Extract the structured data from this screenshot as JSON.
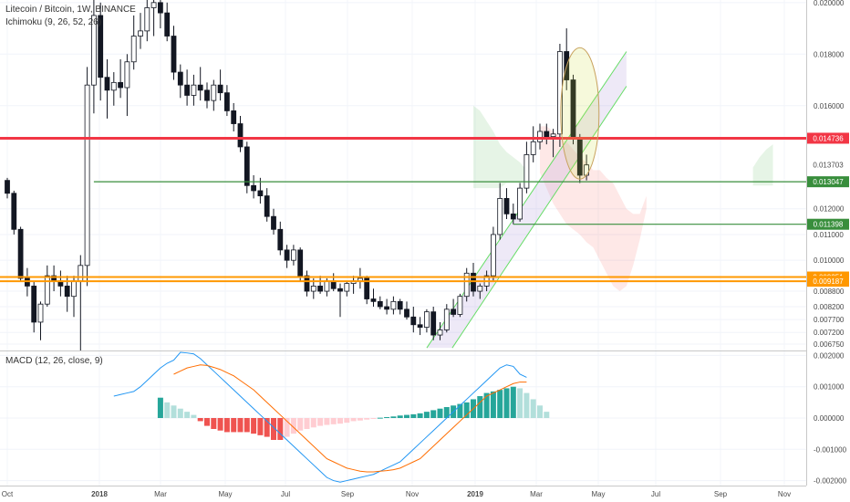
{
  "chart_data": [
    {
      "type": "candlestick",
      "title": "Litecoin / Bitcoin, 1W, BINANCE",
      "indicator": "Ichimoku (9, 26, 52, 26)",
      "timeframe": "1W",
      "exchange": "BINANCE",
      "ylim": [
        0.0065,
        0.0201
      ],
      "y_ticks": [
        "0.020000",
        "0.018000",
        "0.016000",
        "0.012000",
        "0.011000",
        "0.010000",
        "0.008800",
        "0.008200",
        "0.007700",
        "0.007200",
        "0.006750"
      ],
      "x_ticks": [
        "Oct",
        "2018",
        "Mar",
        "May",
        "Jul",
        "Sep",
        "Nov",
        "2019",
        "Mar",
        "May",
        "Jul",
        "Sep",
        "Nov"
      ],
      "candles": [
        [
          0.0131,
          0.0132,
          0.0124,
          0.0126
        ],
        [
          0.0126,
          0.0127,
          0.011,
          0.0112
        ],
        [
          0.0112,
          0.0113,
          0.0092,
          0.0093
        ],
        [
          0.0093,
          0.0097,
          0.0086,
          0.009
        ],
        [
          0.009,
          0.0092,
          0.0072,
          0.0076
        ],
        [
          0.0076,
          0.0084,
          0.0069,
          0.0083
        ],
        [
          0.0083,
          0.0098,
          0.0082,
          0.0094
        ],
        [
          0.0094,
          0.0098,
          0.0088,
          0.0092
        ],
        [
          0.0092,
          0.0096,
          0.0086,
          0.009
        ],
        [
          0.009,
          0.0094,
          0.008,
          0.0086
        ],
        [
          0.0086,
          0.0094,
          0.0078,
          0.0092
        ],
        [
          0.0092,
          0.0102,
          0.0065,
          0.0098
        ],
        [
          0.0098,
          0.0175,
          0.009,
          0.0168
        ],
        [
          0.0168,
          0.0205,
          0.0157,
          0.0195
        ],
        [
          0.0195,
          0.02,
          0.0162,
          0.0171
        ],
        [
          0.0171,
          0.0178,
          0.0155,
          0.0166
        ],
        [
          0.0166,
          0.0173,
          0.016,
          0.0169
        ],
        [
          0.0169,
          0.0178,
          0.0163,
          0.0167
        ],
        [
          0.0167,
          0.018,
          0.0156,
          0.0177
        ],
        [
          0.0177,
          0.0195,
          0.0174,
          0.0187
        ],
        [
          0.0187,
          0.0196,
          0.0182,
          0.0189
        ],
        [
          0.0189,
          0.0205,
          0.0185,
          0.0198
        ],
        [
          0.0198,
          0.0206,
          0.0187,
          0.02
        ],
        [
          0.02,
          0.0204,
          0.019,
          0.0196
        ],
        [
          0.0196,
          0.02,
          0.0185,
          0.0187
        ],
        [
          0.0187,
          0.0191,
          0.017,
          0.0173
        ],
        [
          0.0173,
          0.0176,
          0.0163,
          0.0168
        ],
        [
          0.0168,
          0.0174,
          0.016,
          0.0164
        ],
        [
          0.0164,
          0.0172,
          0.016,
          0.0168
        ],
        [
          0.0168,
          0.0175,
          0.0162,
          0.0166
        ],
        [
          0.0166,
          0.0169,
          0.0159,
          0.0162
        ],
        [
          0.0162,
          0.017,
          0.0158,
          0.0168
        ],
        [
          0.0168,
          0.0174,
          0.0162,
          0.0165
        ],
        [
          0.0165,
          0.0168,
          0.0156,
          0.0158
        ],
        [
          0.0158,
          0.0161,
          0.015,
          0.0153
        ],
        [
          0.0153,
          0.0156,
          0.0142,
          0.0144
        ],
        [
          0.0144,
          0.0146,
          0.0126,
          0.0129
        ],
        [
          0.0129,
          0.0133,
          0.0124,
          0.0127
        ],
        [
          0.0127,
          0.0132,
          0.0122,
          0.0125
        ],
        [
          0.0125,
          0.0128,
          0.0115,
          0.0117
        ],
        [
          0.0117,
          0.012,
          0.011,
          0.0112
        ],
        [
          0.0112,
          0.0115,
          0.0102,
          0.0104
        ],
        [
          0.0104,
          0.0106,
          0.0097,
          0.01
        ],
        [
          0.01,
          0.0106,
          0.0098,
          0.0104
        ],
        [
          0.0104,
          0.0105,
          0.0092,
          0.0094
        ],
        [
          0.0094,
          0.0096,
          0.0086,
          0.0088
        ],
        [
          0.0088,
          0.0093,
          0.0085,
          0.009
        ],
        [
          0.009,
          0.0094,
          0.0087,
          0.0088
        ],
        [
          0.0088,
          0.0093,
          0.0086,
          0.0092
        ],
        [
          0.0092,
          0.0095,
          0.0088,
          0.0089
        ],
        [
          0.0089,
          0.0091,
          0.0078,
          0.0088
        ],
        [
          0.0088,
          0.0092,
          0.0086,
          0.0091
        ],
        [
          0.0091,
          0.0094,
          0.0087,
          0.0092
        ],
        [
          0.0092,
          0.0097,
          0.0089,
          0.0093
        ],
        [
          0.0093,
          0.0094,
          0.0083,
          0.0085
        ],
        [
          0.0085,
          0.0089,
          0.0082,
          0.0084
        ],
        [
          0.0084,
          0.0086,
          0.0081,
          0.0082
        ],
        [
          0.0082,
          0.0085,
          0.0079,
          0.0081
        ],
        [
          0.0081,
          0.0086,
          0.0079,
          0.0084
        ],
        [
          0.0084,
          0.0085,
          0.0079,
          0.0081
        ],
        [
          0.0081,
          0.0084,
          0.0077,
          0.0078
        ],
        [
          0.0078,
          0.0082,
          0.0072,
          0.0075
        ],
        [
          0.0075,
          0.0078,
          0.0071,
          0.0074
        ],
        [
          0.0074,
          0.0081,
          0.0072,
          0.008
        ],
        [
          0.008,
          0.0082,
          0.0069,
          0.0071
        ],
        [
          0.0071,
          0.0076,
          0.0069,
          0.0073
        ],
        [
          0.0073,
          0.0083,
          0.0072,
          0.0081
        ],
        [
          0.0081,
          0.0085,
          0.0078,
          0.0079
        ],
        [
          0.0079,
          0.0087,
          0.0078,
          0.0086
        ],
        [
          0.0086,
          0.0097,
          0.0084,
          0.0095
        ],
        [
          0.0095,
          0.0099,
          0.0086,
          0.0088
        ],
        [
          0.0088,
          0.0091,
          0.0085,
          0.009
        ],
        [
          0.009,
          0.0096,
          0.0088,
          0.0094
        ],
        [
          0.0094,
          0.0113,
          0.0092,
          0.011
        ],
        [
          0.011,
          0.013,
          0.0108,
          0.0124
        ],
        [
          0.0124,
          0.0128,
          0.0116,
          0.0118
        ],
        [
          0.0118,
          0.0122,
          0.0114,
          0.0116
        ],
        [
          0.0116,
          0.013,
          0.0115,
          0.0128
        ],
        [
          0.0128,
          0.0146,
          0.0126,
          0.0141
        ],
        [
          0.0141,
          0.0152,
          0.0138,
          0.0146
        ],
        [
          0.0146,
          0.0153,
          0.0143,
          0.015
        ],
        [
          0.015,
          0.0153,
          0.0145,
          0.0148
        ],
        [
          0.0148,
          0.0151,
          0.014,
          0.0149
        ],
        [
          0.0149,
          0.0184,
          0.0144,
          0.0181
        ],
        [
          0.0181,
          0.019,
          0.0166,
          0.017
        ],
        [
          0.017,
          0.0172,
          0.0145,
          0.0147
        ],
        [
          0.0147,
          0.0149,
          0.013,
          0.0133
        ],
        [
          0.0133,
          0.0141,
          0.0131,
          0.0137
        ]
      ],
      "cloud": {
        "green_a": [
          [
            0.016,
            0.0128
          ],
          [
            0.0158,
            0.0128
          ],
          [
            0.0154,
            0.0128
          ],
          [
            0.015,
            0.0128
          ],
          [
            0.0145,
            0.0128
          ],
          [
            0.0142,
            0.013
          ],
          [
            0.014,
            0.013
          ],
          [
            0.0138,
            0.013
          ],
          [
            0.0135,
            0.0131
          ]
        ],
        "red_a": [
          [
            0.0134,
            0.0152
          ],
          [
            0.0128,
            0.0152
          ],
          [
            0.0122,
            0.015
          ],
          [
            0.0118,
            0.0148
          ],
          [
            0.0114,
            0.0146
          ],
          [
            0.0112,
            0.0143
          ],
          [
            0.011,
            0.014
          ],
          [
            0.0107,
            0.0138
          ],
          [
            0.0105,
            0.0135
          ],
          [
            0.01,
            0.0135
          ],
          [
            0.0095,
            0.0132
          ],
          [
            0.009,
            0.013
          ],
          [
            0.0088,
            0.0125
          ],
          [
            0.009,
            0.012
          ],
          [
            0.0098,
            0.0118
          ],
          [
            0.0108,
            0.0118
          ],
          [
            0.012,
            0.0125
          ]
        ],
        "green_b": [
          [
            0.0136,
            0.0129
          ],
          [
            0.014,
            0.0129
          ],
          [
            0.0143,
            0.0129
          ],
          [
            0.0145,
            0.0129
          ]
        ]
      },
      "horizontal_levels": [
        {
          "value": 0.014736,
          "label": "0.014736",
          "color": "#f23645",
          "width": 3
        },
        {
          "value": 0.013047,
          "label": "0.013047",
          "color": "#388e3c",
          "width": 1.2
        },
        {
          "value": 0.011398,
          "label": "0.011398",
          "color": "#388e3c",
          "width": 1.2
        },
        {
          "value": 0.009351,
          "label": "0.009351",
          "color": "#ff9800",
          "width": 2
        },
        {
          "value": 0.009187,
          "label": "0.009187",
          "color": "#ff9800",
          "width": 2
        }
      ],
      "last_price": {
        "value": 0.013703,
        "label": "0.013703"
      },
      "channel": {
        "fill": "#b39ddb",
        "line": "#66dd66"
      }
    },
    {
      "type": "macd",
      "title": "MACD (12, 26, close, 9)",
      "ylim": [
        -0.0021,
        0.0021
      ],
      "y_ticks": [
        "0.002000",
        "0.001000",
        "0.000000",
        "-0.001000",
        "-0.002000"
      ],
      "macd": [
        0.0007,
        0.00075,
        0.0008,
        0.00085,
        0.001,
        0.0012,
        0.0014,
        0.0016,
        0.00175,
        0.00185,
        0.0021,
        0.00208,
        0.00205,
        0.0019,
        0.0017,
        0.0015,
        0.0013,
        0.0011,
        0.0009,
        0.0007,
        0.0005,
        0.0003,
        0.0001,
        -0.0001,
        -0.0003,
        -0.0005,
        -0.0007,
        -0.0009,
        -0.0011,
        -0.0013,
        -0.0015,
        -0.0017,
        -0.0019,
        -0.002,
        -0.00205,
        -0.002,
        -0.00195,
        -0.0019,
        -0.00185,
        -0.0018,
        -0.0017,
        -0.0016,
        -0.0015,
        -0.0014,
        -0.0012,
        -0.001,
        -0.0008,
        -0.0006,
        -0.0004,
        -0.0002,
        0.0,
        0.0002,
        0.0004,
        0.0006,
        0.0008,
        0.001,
        0.0012,
        0.0014,
        0.0016,
        0.0017,
        0.00165,
        0.0014,
        0.0013
      ],
      "signal": [
        null,
        null,
        null,
        null,
        null,
        null,
        null,
        null,
        null,
        0.0014,
        0.0015,
        0.0016,
        0.00165,
        0.0017,
        0.00168,
        0.00162,
        0.00155,
        0.00145,
        0.00135,
        0.0012,
        0.00105,
        0.0009,
        0.0007,
        0.0005,
        0.0003,
        0.0001,
        -0.0001,
        -0.0003,
        -0.0005,
        -0.0007,
        -0.0009,
        -0.0011,
        -0.0013,
        -0.0014,
        -0.0015,
        -0.0016,
        -0.00165,
        -0.0017,
        -0.00172,
        -0.00172,
        -0.0017,
        -0.00168,
        -0.00165,
        -0.0016,
        -0.0015,
        -0.0014,
        -0.0013,
        -0.0011,
        -0.0009,
        -0.0007,
        -0.0005,
        -0.0003,
        -0.0001,
        0.0001,
        0.0003,
        0.0005,
        0.0007,
        0.0008,
        0.0009,
        0.001,
        0.0011,
        0.00115,
        0.00115
      ],
      "histogram": [
        0.00065,
        0.0005,
        0.0004,
        0.0003,
        0.0002,
        0.0001,
        -0.0001,
        -0.00025,
        -0.00035,
        -0.0004,
        -0.00045,
        -0.00045,
        -0.00045,
        -0.00045,
        -0.0005,
        -0.00055,
        -0.0006,
        -0.0007,
        -0.0007,
        -0.0006,
        -0.0005,
        -0.0004,
        -0.00035,
        -0.0003,
        -0.00025,
        -0.00022,
        -0.0002,
        -0.00018,
        -0.00015,
        -0.0001,
        -8e-05,
        -5e-05,
        -2e-05,
        1e-05,
        3e-05,
        5e-05,
        8e-05,
        0.0001,
        0.00012,
        0.00015,
        0.0002,
        0.00025,
        0.0003,
        0.00035,
        0.0004,
        0.00045,
        0.0005,
        0.0006,
        0.0007,
        0.0008,
        0.00085,
        0.0009,
        0.00095,
        0.001,
        0.00095,
        0.0008,
        0.0006,
        0.0004,
        0.0002
      ]
    }
  ],
  "x_axis": {
    "labels": [
      "Oct",
      "2018",
      "Mar",
      "May",
      "Jul",
      "Sep",
      "Nov",
      "2019",
      "Mar",
      "May",
      "Jul",
      "Sep",
      "Nov"
    ]
  }
}
